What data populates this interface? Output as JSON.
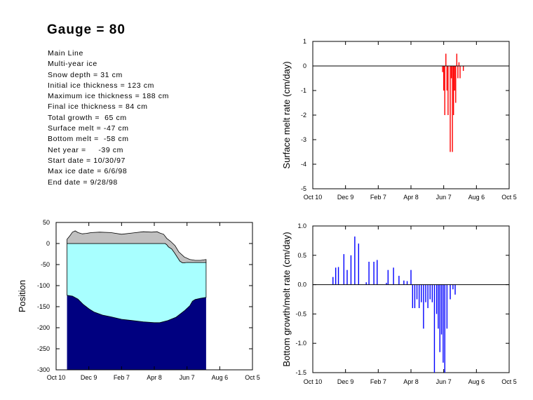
{
  "title": "Gauge = 80",
  "info_lines": [
    "Main Line",
    "Multi-year ice",
    "Snow depth = 31 cm",
    "Initial ice thickness = 123 cm",
    "Maximum ice thickness = 188 cm",
    "Final ice thickness = 84 cm",
    "Total growth =  65 cm",
    "Surface melt = -47 cm",
    "Bottom melt =  -58 cm",
    "Net year =     -39 cm",
    "Start date = 10/30/97",
    "Max ice date = 6/6/98",
    "End date = 9/28/98"
  ],
  "colors": {
    "snow": "#c0c0c0",
    "ice": "#a8ffff",
    "water": "#000080",
    "surface_melt": "#ff0000",
    "bottom": "#0000ff",
    "axis": "#000000"
  },
  "chart_data": [
    {
      "id": "surface",
      "type": "bar",
      "title": "",
      "xlabel": "",
      "ylabel": "Surface melt rate (cm/day)",
      "x_ticks": [
        "Oct 10",
        "Dec 9",
        "Feb 7",
        "Apr 8",
        "Jun 7",
        "Aug 6",
        "Oct 5"
      ],
      "y_ticks": [
        "1",
        "0",
        "-1",
        "-2",
        "-3",
        "-4",
        "-5"
      ],
      "ylim": [
        -5,
        1
      ],
      "zero_line": true,
      "bars": [
        {
          "day": 238,
          "value": -0.25
        },
        {
          "day": 240,
          "value": -1.0
        },
        {
          "day": 242,
          "value": -2.0
        },
        {
          "day": 244,
          "value": 0.5
        },
        {
          "day": 246,
          "value": -1.0
        },
        {
          "day": 248,
          "value": -2.0
        },
        {
          "day": 250,
          "value": 0.0
        },
        {
          "day": 252,
          "value": -3.5
        },
        {
          "day": 254,
          "value": -0.5
        },
        {
          "day": 256,
          "value": -3.5
        },
        {
          "day": 258,
          "value": -2.0
        },
        {
          "day": 260,
          "value": -1.0
        },
        {
          "day": 262,
          "value": -1.5
        },
        {
          "day": 264,
          "value": 0.5
        },
        {
          "day": 266,
          "value": -0.5
        },
        {
          "day": 268,
          "value": 0.15
        },
        {
          "day": 270,
          "value": -0.5
        },
        {
          "day": 272,
          "value": 0.0
        },
        {
          "day": 276,
          "value": -0.2
        }
      ]
    },
    {
      "id": "bottom",
      "type": "bar",
      "title": "",
      "xlabel": "",
      "ylabel": "Bottom growth/melt rate (cm/day)",
      "x_ticks": [
        "Oct 10",
        "Dec 9",
        "Feb 7",
        "Apr 8",
        "Jun 7",
        "Aug 6",
        "Oct 5"
      ],
      "y_ticks": [
        "1.0",
        "0.5",
        "0.0",
        "-0.5",
        "-1.0",
        "-1.5"
      ],
      "ylim": [
        -1.5,
        1.0
      ],
      "zero_line": true,
      "bars": [
        {
          "day": 37,
          "value": 0.13
        },
        {
          "day": 42,
          "value": 0.29
        },
        {
          "day": 47,
          "value": 0.3
        },
        {
          "day": 57,
          "value": 0.52
        },
        {
          "day": 63,
          "value": 0.25
        },
        {
          "day": 70,
          "value": 0.5
        },
        {
          "day": 77,
          "value": 0.82
        },
        {
          "day": 84,
          "value": 0.7
        },
        {
          "day": 98,
          "value": 0.04
        },
        {
          "day": 103,
          "value": 0.39
        },
        {
          "day": 112,
          "value": 0.39
        },
        {
          "day": 118,
          "value": 0.42
        },
        {
          "day": 135,
          "value": 0.03
        },
        {
          "day": 138,
          "value": 0.25
        },
        {
          "day": 148,
          "value": 0.29
        },
        {
          "day": 158,
          "value": 0.15
        },
        {
          "day": 167,
          "value": 0.07
        },
        {
          "day": 173,
          "value": 0.06
        },
        {
          "day": 180,
          "value": 0.25
        },
        {
          "day": 183,
          "value": -0.4
        },
        {
          "day": 187,
          "value": -0.4
        },
        {
          "day": 191,
          "value": -0.25
        },
        {
          "day": 195,
          "value": -0.4
        },
        {
          "day": 199,
          "value": -0.3
        },
        {
          "day": 203,
          "value": -0.75
        },
        {
          "day": 207,
          "value": -0.3
        },
        {
          "day": 211,
          "value": -0.4
        },
        {
          "day": 215,
          "value": -0.25
        },
        {
          "day": 219,
          "value": -0.3
        },
        {
          "day": 223,
          "value": -1.5
        },
        {
          "day": 227,
          "value": -0.5
        },
        {
          "day": 230,
          "value": -0.75
        },
        {
          "day": 233,
          "value": -1.15
        },
        {
          "day": 236,
          "value": -0.85
        },
        {
          "day": 239,
          "value": -1.33
        },
        {
          "day": 242,
          "value": -1.5
        },
        {
          "day": 246,
          "value": -0.75
        },
        {
          "day": 252,
          "value": -0.25
        },
        {
          "day": 257,
          "value": -0.08
        },
        {
          "day": 261,
          "value": -0.17
        }
      ]
    },
    {
      "id": "position",
      "type": "area",
      "title": "",
      "xlabel": "",
      "ylabel": "Position",
      "x_ticks": [
        "Oct 10",
        "Dec 9",
        "Feb 7",
        "Apr 8",
        "Jun 7",
        "Aug 6",
        "Oct 5"
      ],
      "y_ticks": [
        "50",
        "0",
        "-50",
        "-100",
        "-150",
        "-200",
        "-250",
        "-300"
      ],
      "ylim": [
        -300,
        50
      ],
      "series": [
        {
          "name": "",
          "role": "snow_surface",
          "points": [
            [
              20,
              10
            ],
            [
              25,
              18
            ],
            [
              30,
              27
            ],
            [
              35,
              30
            ],
            [
              40,
              26
            ],
            [
              48,
              23
            ],
            [
              55,
              24
            ],
            [
              65,
              26
            ],
            [
              80,
              27
            ],
            [
              100,
              26
            ],
            [
              120,
              22
            ],
            [
              140,
              25
            ],
            [
              160,
              28
            ],
            [
              175,
              27
            ],
            [
              185,
              28
            ],
            [
              190,
              25
            ],
            [
              197,
              22
            ],
            [
              203,
              12
            ],
            [
              210,
              5
            ],
            [
              218,
              -5
            ],
            [
              225,
              -20
            ],
            [
              235,
              -32
            ],
            [
              245,
              -38
            ],
            [
              255,
              -40
            ],
            [
              265,
              -40
            ],
            [
              275,
              -38
            ]
          ]
        },
        {
          "name": "",
          "role": "ice_surface",
          "points": [
            [
              20,
              0
            ],
            [
              200,
              0
            ],
            [
              203,
              -3
            ],
            [
              206,
              -8
            ],
            [
              212,
              -13
            ],
            [
              217,
              -22
            ],
            [
              222,
              -32
            ],
            [
              227,
              -42
            ],
            [
              232,
              -46
            ],
            [
              240,
              -45
            ],
            [
              250,
              -45
            ],
            [
              265,
              -45
            ],
            [
              275,
              -45
            ]
          ]
        },
        {
          "name": "",
          "role": "ice_bottom",
          "points": [
            [
              20,
              -123
            ],
            [
              30,
              -125
            ],
            [
              40,
              -132
            ],
            [
              50,
              -145
            ],
            [
              60,
              -155
            ],
            [
              70,
              -163
            ],
            [
              85,
              -170
            ],
            [
              100,
              -174
            ],
            [
              120,
              -180
            ],
            [
              140,
              -183
            ],
            [
              160,
              -186
            ],
            [
              180,
              -188
            ],
            [
              190,
              -188
            ],
            [
              205,
              -183
            ],
            [
              220,
              -175
            ],
            [
              235,
              -160
            ],
            [
              245,
              -148
            ],
            [
              250,
              -137
            ],
            [
              255,
              -133
            ],
            [
              265,
              -130
            ],
            [
              275,
              -128
            ]
          ]
        }
      ]
    }
  ]
}
